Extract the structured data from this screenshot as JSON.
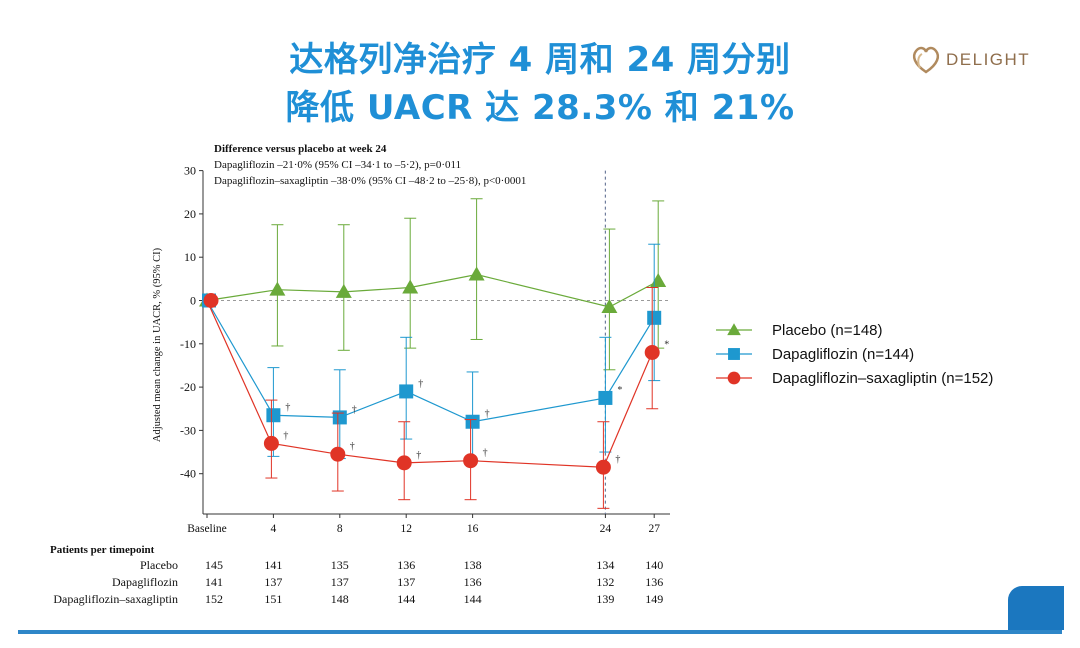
{
  "slide": {
    "title_line1": "达格列净治疗 4 周和 24 周分别",
    "title_line2": "降低 UACR 达 28.3% 和 21%",
    "logo_text": "DELIGHT",
    "accent_color": "#1f8fd6",
    "footer_color": "#2e86c8"
  },
  "annotation": {
    "heading": "Difference versus placebo at week 24",
    "line1": "Dapagliflozin –21·0% (95% CI –34·1 to –5·2), p=0·011",
    "line2": "Dapagliflozin–saxagliptin –38·0% (95% CI –48·2 to –25·8), p<0·0001"
  },
  "chart_data": {
    "type": "line",
    "ylabel": "Adjusted mean change in UACR, % (95% CI)",
    "xlabel": "",
    "ylim": [
      -50,
      30
    ],
    "yticks": [
      30,
      20,
      10,
      0,
      -10,
      -20,
      -30,
      -40
    ],
    "xticks": [
      {
        "value": 0,
        "label": "Baseline"
      },
      {
        "value": 4,
        "label": "4"
      },
      {
        "value": 8,
        "label": "8"
      },
      {
        "value": 12,
        "label": "12"
      },
      {
        "value": 16,
        "label": "16"
      },
      {
        "value": 24,
        "label": "24"
      },
      {
        "value": 27,
        "label": "27"
      }
    ],
    "reference_line_y": 0,
    "reference_line_x": 24,
    "series": [
      {
        "name": "Placebo (n=148)",
        "color": "#6aaa3a",
        "marker": "triangle",
        "x": [
          0,
          4,
          8,
          12,
          16,
          24,
          27
        ],
        "y": [
          0,
          2.5,
          2,
          3,
          6,
          -1.5,
          4.5
        ],
        "lower": [
          0,
          -10.5,
          -11.5,
          -11,
          -9,
          -16,
          -11
        ],
        "upper": [
          0,
          17.5,
          17.5,
          19,
          23.5,
          16.5,
          23
        ],
        "marks": [
          "",
          "",
          "",
          "",
          "",
          "",
          ""
        ]
      },
      {
        "name": "Dapagliflozin (n=144)",
        "color": "#1e98cf",
        "marker": "square",
        "x": [
          0,
          4,
          8,
          12,
          16,
          24,
          27
        ],
        "y": [
          0,
          -26.5,
          -27,
          -21,
          -28,
          -22.5,
          -4
        ],
        "lower": [
          0,
          -36,
          -36.5,
          -32,
          -37,
          -35,
          -18.5
        ],
        "upper": [
          0,
          -15.5,
          -16,
          -8.5,
          -16.5,
          -8.5,
          13
        ],
        "marks": [
          "",
          "†",
          "†",
          "†",
          "†",
          "*",
          ""
        ]
      },
      {
        "name": "Dapagliflozin–saxagliptin (n=152)",
        "color": "#e03426",
        "marker": "circle",
        "x": [
          0,
          4,
          8,
          12,
          16,
          24,
          27
        ],
        "y": [
          0,
          -33,
          -35.5,
          -37.5,
          -37,
          -38.5,
          -12
        ],
        "lower": [
          0,
          -41,
          -44,
          -46,
          -46,
          -48,
          -25
        ],
        "upper": [
          0,
          -23,
          -26,
          -28,
          -27.5,
          -28,
          3
        ],
        "marks": [
          "",
          "†",
          "†",
          "†",
          "†",
          "†",
          "*"
        ]
      }
    ],
    "patients_table": {
      "header": "Patients per timepoint",
      "rows": [
        {
          "label": "Placebo",
          "values": [
            "145",
            "141",
            "135",
            "136",
            "138",
            "134",
            "140"
          ]
        },
        {
          "label": "Dapagliflozin",
          "values": [
            "141",
            "137",
            "137",
            "137",
            "136",
            "132",
            "136"
          ]
        },
        {
          "label": "Dapagliflozin–saxagliptin",
          "values": [
            "152",
            "151",
            "148",
            "144",
            "144",
            "139",
            "149"
          ]
        }
      ]
    }
  }
}
